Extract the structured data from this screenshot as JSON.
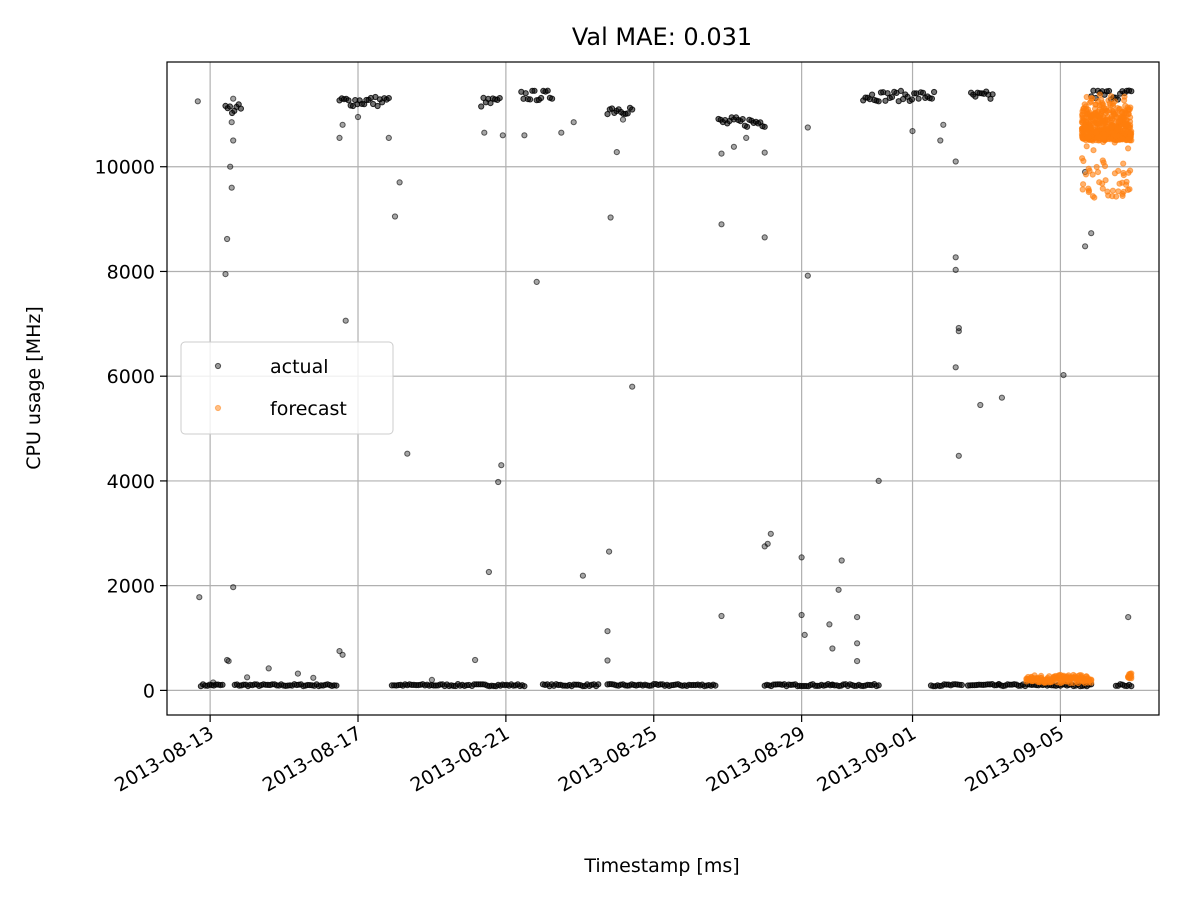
{
  "chart_data": {
    "type": "scatter",
    "title": "Val MAE: 0.031",
    "xlabel": "Timestamp [ms]",
    "ylabel": "CPU usage [MHz]",
    "x_type": "date",
    "xlim": [
      "2013-08-11T20:00",
      "2013-09-07T16:00"
    ],
    "ylim": [
      -470,
      12000
    ],
    "x_ticks": [
      "2013-08-13",
      "2013-08-17",
      "2013-08-21",
      "2013-08-25",
      "2013-08-29",
      "2013-09-01",
      "2013-09-05"
    ],
    "y_ticks": [
      0,
      2000,
      4000,
      6000,
      8000,
      10000
    ],
    "grid": true,
    "legend_position": "center-left",
    "series": [
      {
        "name": "actual",
        "color": "#000000",
        "segments": [
          {
            "start": "2013-08-12T18:00",
            "end": "2013-08-13T08:00",
            "value": 100
          },
          {
            "start": "2013-08-13T16:00",
            "end": "2013-08-16T10:00",
            "value": 100
          },
          {
            "start": "2013-08-17T22:00",
            "end": "2013-08-20T00:00",
            "value": 100
          },
          {
            "start": "2013-08-20T02:00",
            "end": "2013-08-21T12:00",
            "value": 100
          },
          {
            "start": "2013-08-22T00:00",
            "end": "2013-08-23T12:00",
            "value": 100
          },
          {
            "start": "2013-08-23T18:00",
            "end": "2013-08-26T16:00",
            "value": 100
          },
          {
            "start": "2013-08-28T00:00",
            "end": "2013-08-29T20:00",
            "value": 100
          },
          {
            "start": "2013-08-29T20:00",
            "end": "2013-08-31T02:00",
            "value": 100
          },
          {
            "start": "2013-09-01T12:00",
            "end": "2013-09-02T08:00",
            "value": 100
          },
          {
            "start": "2013-09-02T12:00",
            "end": "2013-09-03T08:00",
            "value": 100
          },
          {
            "start": "2013-09-03T08:00",
            "end": "2013-09-05T20:00",
            "value": 100
          },
          {
            "start": "2013-09-06T12:00",
            "end": "2013-09-06T22:00",
            "value": 100
          },
          {
            "start": "2013-08-13T10:00",
            "end": "2013-08-13T20:00",
            "value": 11100
          },
          {
            "start": "2013-08-16T12:00",
            "end": "2013-08-17T20:00",
            "value": 11250
          },
          {
            "start": "2013-08-20T08:00",
            "end": "2013-08-20T20:00",
            "value": 11230
          },
          {
            "start": "2013-08-21T10:00",
            "end": "2013-08-22T06:00",
            "value": 11360
          },
          {
            "start": "2013-08-23T18:00",
            "end": "2013-08-24T10:00",
            "value": 11100
          },
          {
            "start": "2013-08-26T18:00",
            "end": "2013-08-28T00:00",
            "value": 10850
          },
          {
            "start": "2013-08-30T16:00",
            "end": "2013-09-01T14:00",
            "value": 11350
          },
          {
            "start": "2013-09-02T14:00",
            "end": "2013-09-03T04:00",
            "value": 11340
          },
          {
            "start": "2013-09-05T20:00",
            "end": "2013-09-06T22:00",
            "value": 11380
          }
        ],
        "points": [
          [
            "2013-08-12T16:00",
            11250
          ],
          [
            "2013-08-12T17:00",
            1780
          ],
          [
            "2013-08-13T02:00",
            150
          ],
          [
            "2013-08-13T10:00",
            7950
          ],
          [
            "2013-08-13T11:00",
            8620
          ],
          [
            "2013-08-13T13:00",
            10000
          ],
          [
            "2013-08-13T14:00",
            9600
          ],
          [
            "2013-08-13T15:00",
            10500
          ],
          [
            "2013-08-13T14:00",
            10850
          ],
          [
            "2013-08-13T15:00",
            11300
          ],
          [
            "2013-08-13T15:00",
            1970
          ],
          [
            "2013-08-13T11:00",
            580
          ],
          [
            "2013-08-13T12:00",
            560
          ],
          [
            "2013-08-14T14:00",
            420
          ],
          [
            "2013-08-14T00:00",
            250
          ],
          [
            "2013-08-15T09:00",
            320
          ],
          [
            "2013-08-15T19:00",
            240
          ],
          [
            "2013-08-16T12:00",
            750
          ],
          [
            "2013-08-16T14:00",
            680
          ],
          [
            "2013-08-16T16:00",
            7060
          ],
          [
            "2013-08-16T12:00",
            10550
          ],
          [
            "2013-08-16T14:00",
            10800
          ],
          [
            "2013-08-17T00:00",
            10950
          ],
          [
            "2013-08-17T20:00",
            10550
          ],
          [
            "2013-08-18T00:00",
            9050
          ],
          [
            "2013-08-18T03:00",
            9700
          ],
          [
            "2013-08-18T08:00",
            4520
          ],
          [
            "2013-08-19T00:00",
            200
          ],
          [
            "2013-08-20T04:00",
            580
          ],
          [
            "2013-08-20T13:00",
            2260
          ],
          [
            "2013-08-20T19:00",
            3980
          ],
          [
            "2013-08-20T21:00",
            4300
          ],
          [
            "2013-08-20T10:00",
            10650
          ],
          [
            "2013-08-20T22:00",
            10600
          ],
          [
            "2013-08-21T12:00",
            10600
          ],
          [
            "2013-08-21T20:00",
            7800
          ],
          [
            "2013-08-22T12:00",
            10650
          ],
          [
            "2013-08-22T20:00",
            10850
          ],
          [
            "2013-08-23T02:00",
            2190
          ],
          [
            "2013-08-23T18:00",
            1130
          ],
          [
            "2013-08-23T19:00",
            2650
          ],
          [
            "2013-08-23T18:00",
            570
          ],
          [
            "2013-08-23T20:00",
            9030
          ],
          [
            "2013-08-24T00:00",
            10280
          ],
          [
            "2013-08-24T04:00",
            10900
          ],
          [
            "2013-08-24T10:00",
            5800
          ],
          [
            "2013-08-26T20:00",
            1420
          ],
          [
            "2013-08-26T20:00",
            8900
          ],
          [
            "2013-08-26T20:00",
            10250
          ],
          [
            "2013-08-27T04:00",
            10380
          ],
          [
            "2013-08-27T12:00",
            10550
          ],
          [
            "2013-08-28T00:00",
            8650
          ],
          [
            "2013-08-28T00:00",
            10270
          ],
          [
            "2013-08-28T00:00",
            2750
          ],
          [
            "2013-08-28T02:00",
            2800
          ],
          [
            "2013-08-28T04:00",
            2990
          ],
          [
            "2013-08-29T00:00",
            1440
          ],
          [
            "2013-08-29T02:00",
            1060
          ],
          [
            "2013-08-29T00:00",
            2540
          ],
          [
            "2013-08-29T04:00",
            7920
          ],
          [
            "2013-08-29T04:00",
            10750
          ],
          [
            "2013-08-29T18:00",
            1260
          ],
          [
            "2013-08-29T20:00",
            800
          ],
          [
            "2013-08-30T00:00",
            1920
          ],
          [
            "2013-08-30T02:00",
            2480
          ],
          [
            "2013-08-30T12:00",
            1400
          ],
          [
            "2013-08-30T12:00",
            900
          ],
          [
            "2013-08-30T12:00",
            560
          ],
          [
            "2013-08-31T02:00",
            4000
          ],
          [
            "2013-09-01T00:00",
            10680
          ],
          [
            "2013-09-01T18:00",
            10500
          ],
          [
            "2013-09-01T20:00",
            10800
          ],
          [
            "2013-09-02T04:00",
            10100
          ],
          [
            "2013-09-02T04:00",
            8270
          ],
          [
            "2013-09-02T04:00",
            8030
          ],
          [
            "2013-09-02T06:00",
            6920
          ],
          [
            "2013-09-02T06:00",
            6860
          ],
          [
            "2013-09-02T04:00",
            6170
          ],
          [
            "2013-09-02T06:00",
            4480
          ],
          [
            "2013-09-02T20:00",
            5450
          ],
          [
            "2013-09-03T10:00",
            5590
          ],
          [
            "2013-09-05T02:00",
            6020
          ],
          [
            "2013-09-05T16:00",
            8480
          ],
          [
            "2013-09-05T20:00",
            8730
          ],
          [
            "2013-09-05T16:00",
            9900
          ],
          [
            "2013-09-06T20:00",
            1400
          ]
        ]
      },
      {
        "name": "forecast",
        "color": "#ff7f0e",
        "segments": [
          {
            "start": "2013-09-04T02:00",
            "end": "2013-09-05T20:00",
            "value": 200
          },
          {
            "start": "2013-09-06T20:00",
            "end": "2013-09-06T22:00",
            "value": 230
          }
        ],
        "clusters": [
          {
            "start": "2013-09-05T14:00",
            "end": "2013-09-06T22:00",
            "min": 9400,
            "max": 11400
          }
        ]
      }
    ]
  }
}
